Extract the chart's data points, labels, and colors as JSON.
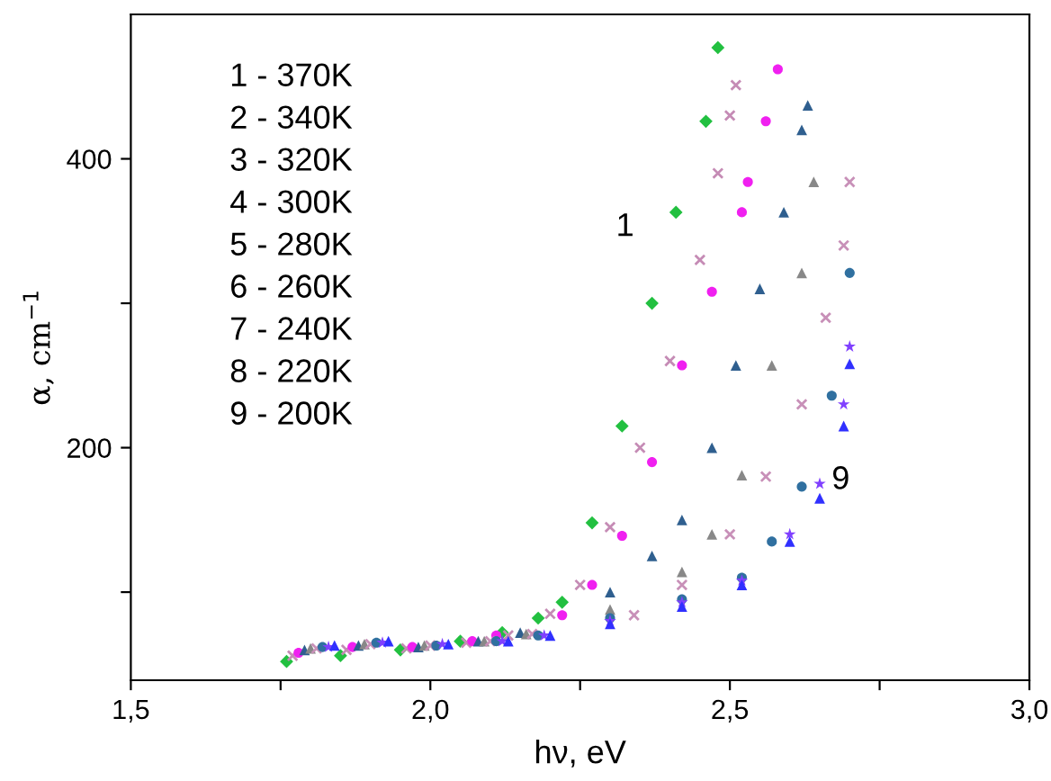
{
  "chart_data": {
    "type": "scatter",
    "xlabel": "hν, eV",
    "ylabel": "α, cm$^{−1}$",
    "xlim": [
      1.5,
      3.0
    ],
    "xticks": [
      {
        "value": 1.5,
        "label": "1,5"
      },
      {
        "value": 1.75,
        "label": null
      },
      {
        "value": 2.0,
        "label": "2,0"
      },
      {
        "value": 2.25,
        "label": null
      },
      {
        "value": 2.5,
        "label": "2,5"
      },
      {
        "value": 2.75,
        "label": null
      },
      {
        "value": 3.0,
        "label": "3,0"
      }
    ],
    "ylim": [
      39,
      500
    ],
    "yticks": [
      {
        "value": 100,
        "label": null
      },
      200,
      {
        "value": 300,
        "label": null
      },
      400
    ],
    "grid": false,
    "annotations": [
      "1 - 370K",
      "2 - 340K",
      "3 - 320K",
      "4 - 300K",
      "5 - 280K",
      "6 - 260K",
      "7 - 240K",
      "8 - 220K",
      "9 - 200K",
      "1",
      "9"
    ],
    "series": [
      {
        "color": "#22c040",
        "marker": "diamond",
        "x": [
          1.76,
          1.85,
          1.95,
          2.05,
          2.12,
          2.18,
          2.22,
          2.27,
          2.32,
          2.37,
          2.41,
          2.46,
          2.48
        ],
        "values": [
          52,
          56,
          60,
          66,
          72,
          82,
          93,
          148,
          215,
          300,
          363,
          426,
          477
        ]
      },
      {
        "color": "#c58bb5",
        "marker": "cross",
        "x": [
          1.77,
          1.86,
          1.96,
          2.06,
          2.13,
          2.2,
          2.25,
          2.3,
          2.35,
          2.4,
          2.45,
          2.48,
          2.5,
          2.51
        ],
        "values": [
          56,
          60,
          61,
          65,
          70,
          85,
          105,
          145,
          200,
          260,
          330,
          390,
          430,
          451
        ]
      },
      {
        "color": "#f020f0",
        "marker": "circle",
        "x": [
          1.78,
          1.87,
          1.97,
          2.07,
          2.11,
          2.22,
          2.27,
          2.32,
          2.37,
          2.42,
          2.47,
          2.52,
          2.53,
          2.56,
          2.58
        ],
        "values": [
          58,
          62,
          62,
          66,
          70,
          84,
          105,
          139,
          190,
          257,
          308,
          363,
          384,
          426,
          462
        ]
      },
      {
        "color": "#2f5f8f",
        "marker": "triangle",
        "x": [
          1.79,
          1.88,
          1.98,
          2.08,
          2.15,
          2.3,
          2.37,
          2.42,
          2.47,
          2.51,
          2.55,
          2.59,
          2.62,
          2.63
        ],
        "values": [
          60,
          63,
          62,
          66,
          72,
          100,
          125,
          150,
          200,
          257,
          310,
          363,
          420,
          437
        ]
      },
      {
        "color": "#888888",
        "marker": "triangle",
        "x": [
          1.8,
          1.89,
          1.99,
          2.09,
          2.16,
          2.3,
          2.42,
          2.47,
          2.52,
          2.57,
          2.62,
          2.64
        ],
        "values": [
          61,
          64,
          63,
          66,
          71,
          88,
          114,
          140,
          181,
          257,
          321,
          384
        ]
      },
      {
        "color": "#c890b8",
        "marker": "cross",
        "x": [
          1.81,
          1.9,
          2.0,
          2.1,
          2.17,
          2.34,
          2.42,
          2.5,
          2.56,
          2.62,
          2.66,
          2.69,
          2.7
        ],
        "values": [
          61,
          64,
          63,
          66,
          71,
          84,
          105,
          140,
          180,
          230,
          290,
          340,
          384
        ]
      },
      {
        "color": "#3070a0",
        "marker": "circle",
        "x": [
          1.82,
          1.91,
          2.01,
          2.11,
          2.18,
          2.3,
          2.42,
          2.52,
          2.57,
          2.62,
          2.67,
          2.7
        ],
        "values": [
          62,
          65,
          63,
          66,
          70,
          82,
          95,
          110,
          135,
          173,
          236,
          321
        ]
      },
      {
        "color": "#8040ff",
        "marker": "star",
        "x": [
          1.83,
          1.92,
          2.02,
          2.12,
          2.19,
          2.3,
          2.42,
          2.52,
          2.6,
          2.65,
          2.69,
          2.7
        ],
        "values": [
          62,
          65,
          64,
          66,
          70,
          80,
          93,
          108,
          140,
          175,
          230,
          270
        ]
      },
      {
        "color": "#3030ff",
        "marker": "triangle",
        "x": [
          1.84,
          1.93,
          2.03,
          2.13,
          2.2,
          2.3,
          2.42,
          2.52,
          2.6,
          2.65,
          2.69,
          2.7
        ],
        "values": [
          63,
          66,
          64,
          66,
          70,
          78,
          90,
          105,
          135,
          165,
          215,
          258
        ]
      }
    ]
  }
}
